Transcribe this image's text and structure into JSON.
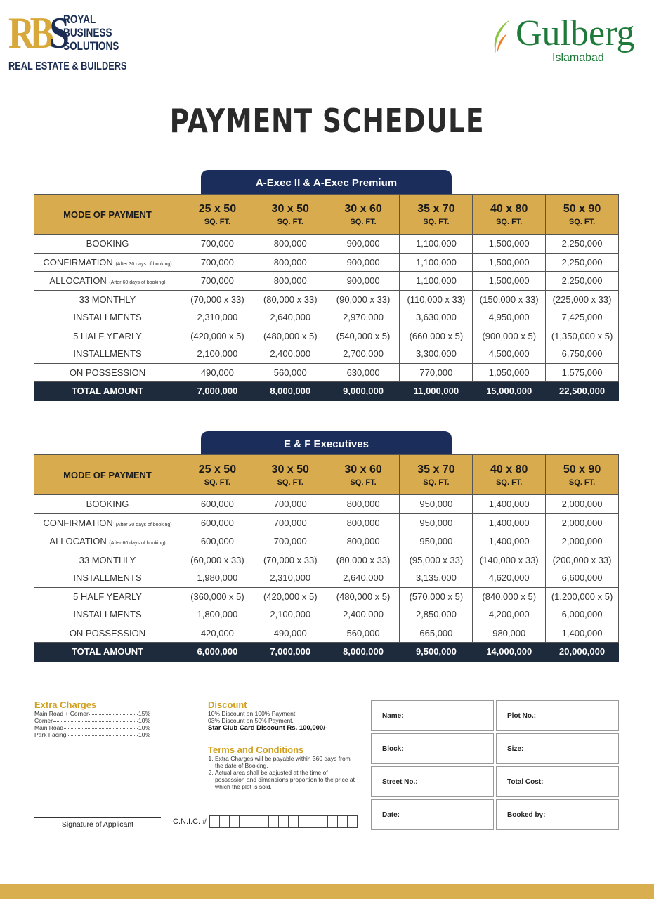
{
  "brand_left": {
    "monogram": "RBS",
    "words": [
      "ROYAL",
      "BUSINESS",
      "SOLUTIONS"
    ],
    "tagline": "REAL ESTATE & BUILDERS",
    "colors": {
      "gold": "#d8a83a",
      "navy": "#1b2d52"
    }
  },
  "brand_right": {
    "name": "Gulberg",
    "sub": "Islamabad",
    "color": "#1f7a3a"
  },
  "title": "PAYMENT SCHEDULE",
  "colors": {
    "header_gold": "#d8ab4e",
    "tab_navy": "#1b2d5a",
    "total_row": "#1e2b3d"
  },
  "tables": [
    {
      "tab": "A-Exec II & A-Exec Premium",
      "mode_header": "MODE OF PAYMENT",
      "sizes": [
        "25 x 50",
        "30 x 50",
        "30 x 60",
        "35 x 70",
        "40 x 80",
        "50 x 90"
      ],
      "unit": "SQ. FT.",
      "rows": [
        {
          "label": "BOOKING",
          "note": "",
          "values": [
            "700,000",
            "800,000",
            "900,000",
            "1,100,000",
            "1,500,000",
            "2,250,000"
          ]
        },
        {
          "label": "CONFIRMATION",
          "note": "(After 30 days of booking)",
          "values": [
            "700,000",
            "800,000",
            "900,000",
            "1,100,000",
            "1,500,000",
            "2,250,000"
          ]
        },
        {
          "label": "ALLOCATION",
          "note": "(After 60 days of booking)",
          "values": [
            "700,000",
            "800,000",
            "900,000",
            "1,100,000",
            "1,500,000",
            "2,250,000"
          ]
        },
        {
          "label": "33 MONTHLY",
          "note": "",
          "group": "top",
          "values": [
            "(70,000 x 33)",
            "(80,000 x 33)",
            "(90,000 x 33)",
            "(110,000 x 33)",
            "(150,000 x 33)",
            "(225,000 x 33)"
          ]
        },
        {
          "label": "INSTALLMENTS",
          "note": "",
          "group": "bot",
          "values": [
            "2,310,000",
            "2,640,000",
            "2,970,000",
            "3,630,000",
            "4,950,000",
            "7,425,000"
          ]
        },
        {
          "label": "5 HALF YEARLY",
          "note": "",
          "group": "top",
          "values": [
            "(420,000 x 5)",
            "(480,000 x 5)",
            "(540,000 x 5)",
            "(660,000 x 5)",
            "(900,000 x 5)",
            "(1,350,000 x 5)"
          ]
        },
        {
          "label": "INSTALLMENTS",
          "note": "",
          "group": "bot",
          "values": [
            "2,100,000",
            "2,400,000",
            "2,700,000",
            "3,300,000",
            "4,500,000",
            "6,750,000"
          ]
        },
        {
          "label": "ON POSSESSION",
          "note": "",
          "values": [
            "490,000",
            "560,000",
            "630,000",
            "770,000",
            "1,050,000",
            "1,575,000"
          ]
        },
        {
          "label": "TOTAL AMOUNT",
          "note": "",
          "group": "total",
          "values": [
            "7,000,000",
            "8,000,000",
            "9,000,000",
            "11,000,000",
            "15,000,000",
            "22,500,000"
          ]
        }
      ]
    },
    {
      "tab": "E & F Executives",
      "mode_header": "MODE OF PAYMENT",
      "sizes": [
        "25 x 50",
        "30 x 50",
        "30 x 60",
        "35 x 70",
        "40 x 80",
        "50 x 90"
      ],
      "unit": "SQ. FT.",
      "rows": [
        {
          "label": "BOOKING",
          "note": "",
          "values": [
            "600,000",
            "700,000",
            "800,000",
            "950,000",
            "1,400,000",
            "2,000,000"
          ]
        },
        {
          "label": "CONFIRMATION",
          "note": "(After 30 days of booking)",
          "values": [
            "600,000",
            "700,000",
            "800,000",
            "950,000",
            "1,400,000",
            "2,000,000"
          ]
        },
        {
          "label": "ALLOCATION",
          "note": "(After 60 days of booking)",
          "values": [
            "600,000",
            "700,000",
            "800,000",
            "950,000",
            "1,400,000",
            "2,000,000"
          ]
        },
        {
          "label": "33 MONTHLY",
          "note": "",
          "group": "top",
          "values": [
            "(60,000 x 33)",
            "(70,000 x 33)",
            "(80,000 x 33)",
            "(95,000 x 33)",
            "(140,000 x 33)",
            "(200,000 x 33)"
          ]
        },
        {
          "label": "INSTALLMENTS",
          "note": "",
          "group": "bot",
          "values": [
            "1,980,000",
            "2,310,000",
            "2,640,000",
            "3,135,000",
            "4,620,000",
            "6,600,000"
          ]
        },
        {
          "label": "5 HALF YEARLY",
          "note": "",
          "group": "top",
          "values": [
            "(360,000 x 5)",
            "(420,000 x 5)",
            "(480,000 x 5)",
            "(570,000 x 5)",
            "(840,000 x 5)",
            "(1,200,000 x 5)"
          ]
        },
        {
          "label": "INSTALLMENTS",
          "note": "",
          "group": "bot",
          "values": [
            "1,800,000",
            "2,100,000",
            "2,400,000",
            "2,850,000",
            "4,200,000",
            "6,000,000"
          ]
        },
        {
          "label": "ON POSSESSION",
          "note": "",
          "values": [
            "420,000",
            "490,000",
            "560,000",
            "665,000",
            "980,000",
            "1,400,000"
          ]
        },
        {
          "label": "TOTAL AMOUNT",
          "note": "",
          "group": "total",
          "values": [
            "6,000,000",
            "7,000,000",
            "8,000,000",
            "9,500,000",
            "14,000,000",
            "20,000,000"
          ]
        }
      ]
    }
  ],
  "extra_charges": {
    "heading": "Extra Charges",
    "items": [
      {
        "name": "Main Road + Corner",
        "value": "15%"
      },
      {
        "name": "Corner",
        "value": "10%"
      },
      {
        "name": "Main Road",
        "value": "10%"
      },
      {
        "name": "Park Facing",
        "value": "10%"
      }
    ]
  },
  "discount": {
    "heading": "Discount",
    "lines": [
      "10% Discount on 100% Payment.",
      "03% Discount on 50% Payment."
    ],
    "star": "Star Club Card Discount Rs. 100,000/-"
  },
  "terms": {
    "heading": "Terms and Conditions",
    "items": [
      "Extra Charges will be payable within 360 days from the date of Booking.",
      "Actual area shall be adjusted at the time of possession and dimensions proportion to the price at which the plot is sold."
    ]
  },
  "signature_label": "Signature of Applicant",
  "cnic_label": "C.N.I.C. #",
  "form_fields": [
    "Name:",
    "Plot No.:",
    "Block:",
    "Size:",
    "Street No.:",
    "Total Cost:",
    "Date:",
    "Booked by:"
  ]
}
